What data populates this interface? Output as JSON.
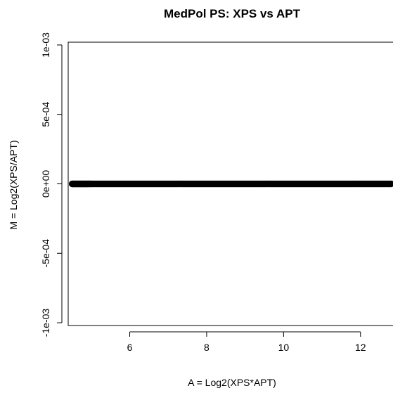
{
  "chart_data": {
    "type": "scatter",
    "title": "MedPol PS: XPS vs APT",
    "xlabel": "A = Log2(XPS*APT)",
    "ylabel": "M = Log2(XPS/APT)",
    "xlim": [
      4.4,
      12.9
    ],
    "ylim": [
      -0.00102,
      0.00102
    ],
    "xticks": [
      6,
      8,
      10,
      12
    ],
    "xtick_labels": [
      "6",
      "8",
      10,
      "12"
    ],
    "yticks": [
      -0.001,
      -0.0005,
      0,
      0.0005,
      0.001
    ],
    "ytick_labels": [
      "-1e-03",
      "-5e-04",
      "0e+00",
      "5e-04",
      "1e-03"
    ],
    "grid": false,
    "series": [
      {
        "x": [
          4.5,
          4.6,
          4.7,
          4.8,
          4.9,
          5.0,
          5.2,
          5.4,
          5.6,
          5.8,
          6.0,
          6.2,
          6.4,
          6.6,
          6.8,
          7.0,
          7.2,
          7.4,
          7.6,
          7.8,
          8.0,
          8.2,
          8.4,
          8.6,
          8.8,
          9.0,
          9.2,
          9.4,
          9.6,
          9.8,
          10.0,
          10.2,
          10.4,
          10.6,
          10.8,
          11.0,
          11.2,
          11.4,
          11.6,
          11.8,
          12.0,
          12.2,
          12.4,
          12.6,
          12.8
        ],
        "y": [
          0,
          0,
          0,
          0,
          0,
          0,
          0,
          0,
          0,
          0,
          0,
          0,
          0,
          0,
          0,
          0,
          0,
          0,
          0,
          0,
          0,
          0,
          0,
          0,
          0,
          0,
          0,
          0,
          0,
          0,
          0,
          0,
          0,
          0,
          0,
          0,
          0,
          0,
          0,
          0,
          0,
          0,
          0,
          0,
          0
        ]
      }
    ]
  }
}
